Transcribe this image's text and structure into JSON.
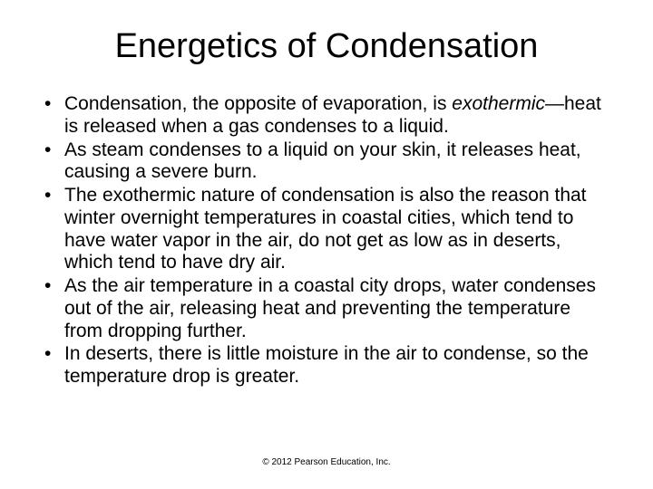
{
  "title": "Energetics of Condensation",
  "bullets": [
    {
      "pre": "Condensation, the opposite of evaporation, is ",
      "italic": "exothermic",
      "post": "—heat is released when a gas condenses to a liquid."
    },
    {
      "text": "As steam condenses to a liquid on your skin, it releases heat, causing a severe burn."
    },
    {
      "text": "The exothermic nature of condensation is also the reason that winter overnight temperatures in coastal cities, which tend to have water vapor in the air, do not get as low as in deserts, which tend to have dry air."
    },
    {
      "text": "As the air temperature in a coastal city drops, water condenses out of the air, releasing heat and preventing the temperature from dropping further."
    },
    {
      "text": "In deserts, there is little moisture in the air to condense, so the temperature drop is greater."
    }
  ],
  "copyright": "© 2012 Pearson Education, Inc.",
  "styling": {
    "background_color": "#ffffff",
    "text_color": "#000000",
    "title_fontsize": 38,
    "body_fontsize": 21,
    "copyright_fontsize": 10,
    "font_family": "Arial"
  }
}
